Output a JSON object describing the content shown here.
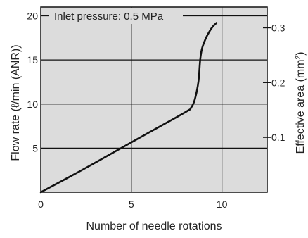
{
  "chart_data": {
    "type": "line",
    "annotation": "Inlet pressure: 0.5 MPa",
    "xlabel": "Number of needle rotations",
    "ylabel": "Flow rate (ℓ/min (ANR))",
    "y2label_main": "Effective area (mm",
    "y2label_sup": "2",
    "y2label_end": ")",
    "xlim": [
      0,
      12.5
    ],
    "ylim": [
      0,
      21
    ],
    "y2lim": [
      0,
      0.338
    ],
    "x_ticks": [
      0,
      5,
      10
    ],
    "x_tick_labels": [
      "0",
      "5",
      "10"
    ],
    "y_ticks": [
      5,
      10,
      15,
      20
    ],
    "y_tick_labels": [
      "5",
      "10",
      "15",
      "20"
    ],
    "y2_ticks": [
      0.1,
      0.2,
      0.3
    ],
    "y2_tick_labels": [
      "0.1",
      "0.2",
      "0.3"
    ],
    "grid": true,
    "background": "#dcdcdc",
    "line_color": "#111111",
    "series": [
      {
        "x": [
          0,
          2,
          4,
          6,
          8,
          8.3,
          8.5,
          8.7,
          8.8,
          8.9,
          9.1,
          9.3,
          9.5,
          9.7
        ],
        "y": [
          0,
          2.2,
          4.5,
          6.8,
          9.1,
          9.6,
          10.5,
          12.5,
          15.0,
          16.3,
          17.4,
          18.2,
          18.8,
          19.2
        ]
      }
    ]
  }
}
